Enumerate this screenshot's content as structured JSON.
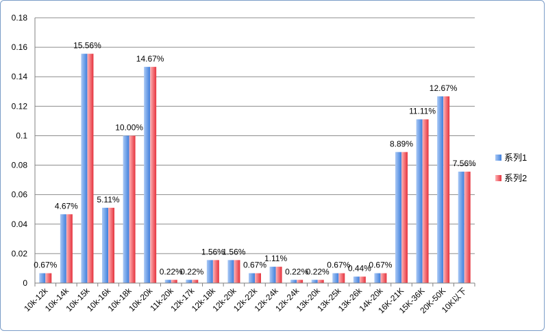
{
  "chart_data": {
    "type": "bar",
    "title": "",
    "xlabel": "",
    "ylabel": "",
    "ylim": [
      0,
      0.18
    ],
    "yticks": [
      "0",
      "0.02",
      "0.04",
      "0.06",
      "0.08",
      "0.1",
      "0.12",
      "0.14",
      "0.16",
      "0.18"
    ],
    "grid": true,
    "legend_position": "right",
    "categories": [
      "10k-12k",
      "10k-14k",
      "10k-15k",
      "10k-16k",
      "10k-18k",
      "10k-20k",
      "11k-20k",
      "12k-17k",
      "12k-18k",
      "12k-20k",
      "12k-22k",
      "12k-24k",
      "12k-24k",
      "13k-20k",
      "13k-25k",
      "13k-26k",
      "14k-20k",
      "16K-21K",
      "15K-36K",
      "20K-50K",
      "10K以下"
    ],
    "data_labels": [
      "0.67%",
      "4.67%",
      "15.56%",
      "5.11%",
      "10.00%",
      "14.67%",
      "0.22%",
      "0.22%",
      "1.56%",
      "1.56%",
      "0.67%",
      "1.11%",
      "0.22%",
      "0.22%",
      "0.67%",
      "0.44%",
      "0.67%",
      "8.89%",
      "11.11%",
      "12.67%",
      "7.56%"
    ],
    "series": [
      {
        "name": "系列1",
        "color": "#5b8fe0",
        "values": [
          0.0067,
          0.0467,
          0.1556,
          0.0511,
          0.1,
          0.1467,
          0.0022,
          0.0022,
          0.0156,
          0.0156,
          0.0067,
          0.0111,
          0.0022,
          0.0022,
          0.0067,
          0.0044,
          0.0067,
          0.0889,
          0.1111,
          0.1267,
          0.0756
        ]
      },
      {
        "name": "系列2",
        "color": "#e8474f",
        "values": [
          0.0067,
          0.0467,
          0.1556,
          0.0511,
          0.1,
          0.1467,
          0.0022,
          0.0022,
          0.0156,
          0.0156,
          0.0067,
          0.0111,
          0.0022,
          0.0022,
          0.0067,
          0.0044,
          0.0067,
          0.0889,
          0.1111,
          0.1267,
          0.0756
        ]
      }
    ]
  }
}
